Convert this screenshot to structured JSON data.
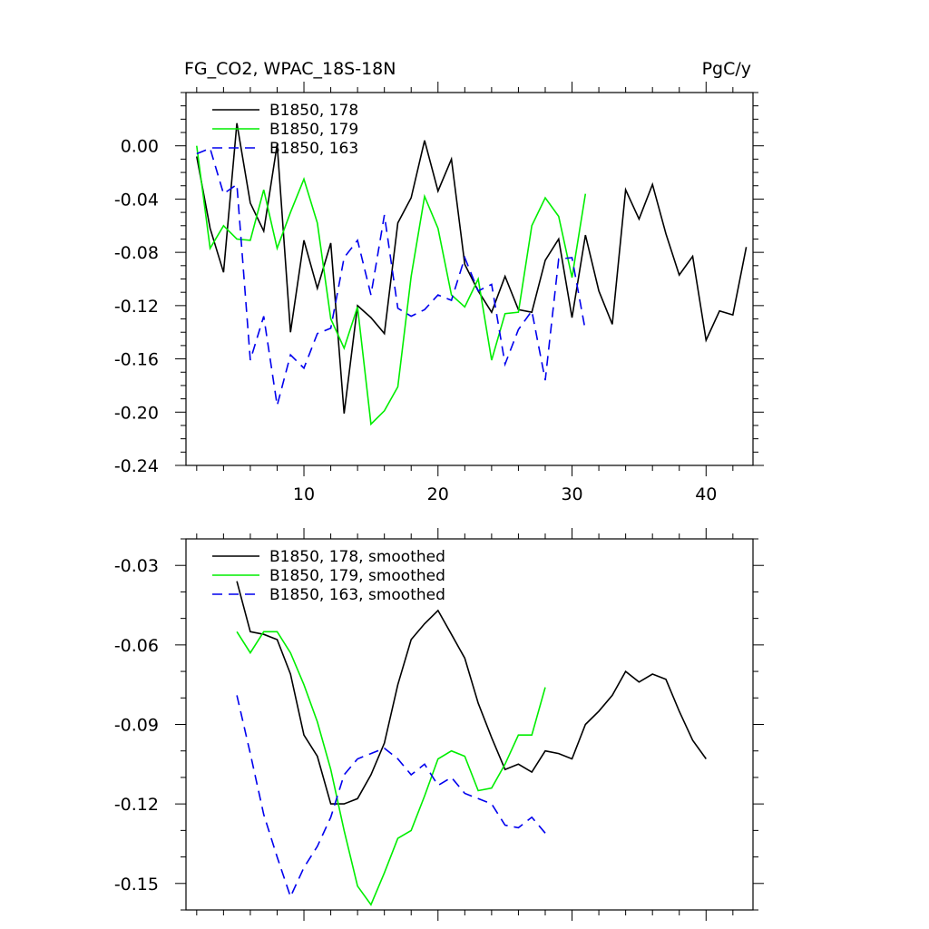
{
  "chart_data": [
    {
      "type": "line",
      "title_left": "FG_CO2, WPAC_18S-18N",
      "title_right": "PgC/y",
      "xlabel": "",
      "ylabel": "",
      "xlim": [
        1.2,
        43.5
      ],
      "ylim": [
        -0.24,
        0.04
      ],
      "xticks": [
        10,
        20,
        30,
        40
      ],
      "xtick_labels": [
        "10",
        "20",
        "30",
        "40"
      ],
      "yticks": [
        0.0,
        -0.04,
        -0.08,
        -0.12,
        -0.16,
        -0.2,
        -0.24
      ],
      "ytick_labels": [
        "0.00",
        "-0.04",
        "-0.08",
        "-0.12",
        "-0.16",
        "-0.20",
        "-0.24"
      ],
      "grid": false,
      "legend_position": "top-left",
      "series": [
        {
          "name": "B1850, 178",
          "color": "#000000",
          "dash": "solid",
          "x": [
            2,
            3,
            4,
            5,
            6,
            7,
            8,
            9,
            10,
            11,
            12,
            13,
            14,
            15,
            16,
            17,
            18,
            19,
            20,
            21,
            22,
            23,
            24,
            25,
            26,
            27,
            28,
            29,
            30,
            31,
            32,
            33,
            34,
            35,
            36,
            37,
            38,
            39,
            40,
            41,
            42,
            43
          ],
          "values": [
            -0.008,
            -0.062,
            -0.095,
            0.017,
            -0.043,
            -0.064,
            0.001,
            -0.14,
            -0.071,
            -0.107,
            -0.073,
            -0.201,
            -0.12,
            -0.129,
            -0.141,
            -0.058,
            -0.039,
            0.004,
            -0.034,
            -0.01,
            -0.089,
            -0.109,
            -0.125,
            -0.098,
            -0.123,
            -0.125,
            -0.086,
            -0.07,
            -0.129,
            -0.067,
            -0.109,
            -0.134,
            -0.033,
            -0.055,
            -0.029,
            -0.066,
            -0.097,
            -0.083,
            -0.146,
            -0.124,
            -0.127,
            -0.076
          ]
        },
        {
          "name": "B1850, 179",
          "color": "#00ee00",
          "dash": "solid",
          "x": [
            2,
            3,
            4,
            5,
            6,
            7,
            8,
            9,
            10,
            11,
            12,
            13,
            14,
            15,
            16,
            17,
            18,
            19,
            20,
            21,
            22,
            23,
            24,
            25,
            26,
            27,
            28,
            29,
            30,
            31
          ],
          "values": [
            0.0,
            -0.077,
            -0.06,
            -0.07,
            -0.071,
            -0.033,
            -0.077,
            -0.05,
            -0.025,
            -0.058,
            -0.13,
            -0.152,
            -0.121,
            -0.209,
            -0.199,
            -0.181,
            -0.098,
            -0.038,
            -0.062,
            -0.112,
            -0.121,
            -0.1,
            -0.161,
            -0.126,
            -0.125,
            -0.06,
            -0.039,
            -0.053,
            -0.099,
            -0.036
          ]
        },
        {
          "name": "B1850, 163",
          "color": "#0000ee",
          "dash": "dashed",
          "x": [
            2,
            3,
            4,
            5,
            6,
            7,
            8,
            9,
            10,
            11,
            12,
            13,
            14,
            15,
            16,
            17,
            18,
            19,
            20,
            21,
            22,
            23,
            24,
            25,
            26,
            27,
            28,
            29,
            30,
            31
          ],
          "values": [
            -0.006,
            -0.002,
            -0.036,
            -0.029,
            -0.161,
            -0.128,
            -0.195,
            -0.157,
            -0.167,
            -0.141,
            -0.137,
            -0.084,
            -0.071,
            -0.112,
            -0.052,
            -0.122,
            -0.128,
            -0.123,
            -0.112,
            -0.116,
            -0.084,
            -0.109,
            -0.104,
            -0.164,
            -0.138,
            -0.124,
            -0.176,
            -0.085,
            -0.084,
            -0.139
          ]
        }
      ]
    },
    {
      "type": "line",
      "title": "",
      "xlabel": "",
      "ylabel": "",
      "xlim": [
        1.2,
        43.5
      ],
      "ylim": [
        -0.16,
        -0.02
      ],
      "xticks": [
        10,
        20,
        30,
        40
      ],
      "xtick_labels": [],
      "yticks": [
        -0.03,
        -0.06,
        -0.09,
        -0.12,
        -0.15
      ],
      "ytick_labels": [
        "-0.03",
        "-0.06",
        "-0.09",
        "-0.12",
        "-0.15"
      ],
      "grid": false,
      "legend_position": "top-left",
      "series": [
        {
          "name": "B1850, 178, smoothed",
          "color": "#000000",
          "dash": "solid",
          "x": [
            5,
            6,
            7,
            8,
            9,
            10,
            11,
            12,
            13,
            14,
            15,
            16,
            17,
            18,
            19,
            20,
            21,
            22,
            23,
            24,
            25,
            26,
            27,
            28,
            29,
            30,
            31,
            32,
            33,
            34,
            35,
            36,
            37,
            38,
            39,
            40
          ],
          "values": [
            -0.036,
            -0.055,
            -0.056,
            -0.058,
            -0.071,
            -0.094,
            -0.102,
            -0.12,
            -0.12,
            -0.118,
            -0.109,
            -0.097,
            -0.075,
            -0.058,
            -0.052,
            -0.047,
            -0.056,
            -0.065,
            -0.082,
            -0.095,
            -0.107,
            -0.105,
            -0.108,
            -0.1,
            -0.101,
            -0.103,
            -0.09,
            -0.085,
            -0.079,
            -0.07,
            -0.074,
            -0.071,
            -0.073,
            -0.085,
            -0.096,
            -0.103
          ]
        },
        {
          "name": "B1850, 179, smoothed",
          "color": "#00ee00",
          "dash": "solid",
          "x": [
            5,
            6,
            7,
            8,
            9,
            10,
            11,
            12,
            13,
            14,
            15,
            16,
            17,
            18,
            19,
            20,
            21,
            22,
            23,
            24,
            25,
            26,
            27,
            28
          ],
          "values": [
            -0.055,
            -0.063,
            -0.055,
            -0.055,
            -0.063,
            -0.075,
            -0.089,
            -0.107,
            -0.13,
            -0.151,
            -0.158,
            -0.146,
            -0.133,
            -0.13,
            -0.117,
            -0.103,
            -0.1,
            -0.102,
            -0.115,
            -0.114,
            -0.105,
            -0.094,
            -0.094,
            -0.076
          ]
        },
        {
          "name": "B1850, 163, smoothed",
          "color": "#0000ee",
          "dash": "dashed",
          "x": [
            5,
            6,
            7,
            8,
            9,
            10,
            11,
            12,
            13,
            14,
            15,
            16,
            17,
            18,
            19,
            20,
            21,
            22,
            23,
            24,
            25,
            26,
            27,
            28
          ],
          "values": [
            -0.079,
            -0.101,
            -0.124,
            -0.14,
            -0.155,
            -0.144,
            -0.136,
            -0.125,
            -0.109,
            -0.103,
            -0.101,
            -0.099,
            -0.103,
            -0.109,
            -0.105,
            -0.113,
            -0.11,
            -0.116,
            -0.118,
            -0.12,
            -0.128,
            -0.129,
            -0.125,
            -0.131
          ]
        }
      ]
    }
  ]
}
